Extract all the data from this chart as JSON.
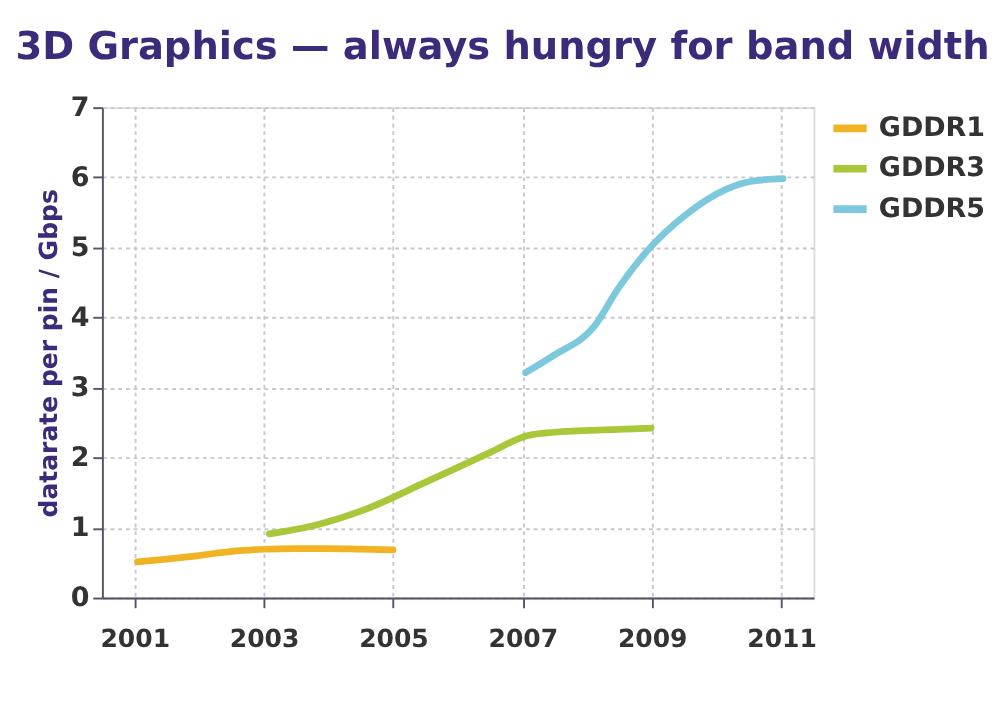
{
  "chart_data": {
    "type": "line",
    "title": "3D Graphics — always hungry for band width",
    "ylabel": "datarate per pin / Gbps",
    "ylim": [
      0,
      7
    ],
    "yticks": [
      0,
      1,
      2,
      3,
      4,
      5,
      6,
      7
    ],
    "xlim": [
      2000.5,
      2011.5
    ],
    "xticks": [
      2001,
      2003,
      2005,
      2007,
      2009,
      2011
    ],
    "grid": true,
    "legend": "right",
    "marker": "none",
    "line_style": "solid",
    "series": [
      {
        "name": "GDDR1",
        "color": "#f0b323",
        "x": [
          2001.05,
          2001.5,
          2002,
          2002.5,
          2003,
          2003.5,
          2004,
          2004.5,
          2005.0
        ],
        "values": [
          0.51,
          0.55,
          0.6,
          0.66,
          0.69,
          0.7,
          0.7,
          0.69,
          0.68
        ]
      },
      {
        "name": "GDDR3",
        "color": "#a8c83a",
        "x": [
          2003.09,
          2003.83,
          2004.52,
          2005.49,
          2006.52,
          2007.07,
          2007.49,
          2008.48,
          2008.99
        ],
        "values": [
          0.91,
          1.04,
          1.24,
          1.64,
          2.08,
          2.31,
          2.36,
          2.4,
          2.42
        ]
      },
      {
        "name": "GDDR5",
        "color": "#7cc8dc",
        "x": [
          2007.05,
          2007.49,
          2008.11,
          2008.48,
          2008.94,
          2009.52,
          2010.13,
          2010.52,
          2011.03
        ],
        "values": [
          3.21,
          3.46,
          3.87,
          4.41,
          4.96,
          5.46,
          5.82,
          5.94,
          5.98
        ]
      }
    ]
  }
}
